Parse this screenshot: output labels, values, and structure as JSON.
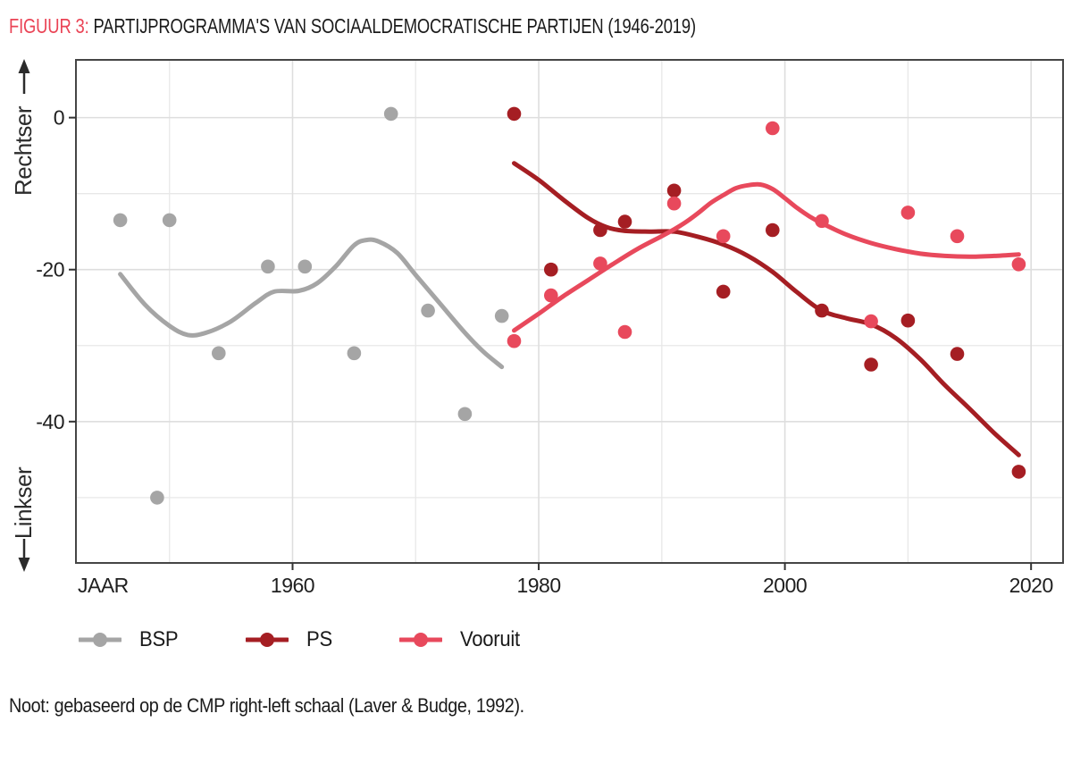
{
  "figure": {
    "label": "FIGUUR 3:",
    "title": "PARTIJPROGRAMMA'S VAN SOCIAALDEMOCRATISCHE PARTIJEN (1946-2019)",
    "note": "Noot: gebaseerd op de CMP right-left schaal (Laver & Budge, 1992)."
  },
  "colors": {
    "figure_label_red": "#ea4355",
    "bsp_gray": "#a5a5a5",
    "ps_dark_red": "#a51e23",
    "vooruit_pink": "#e8495c",
    "grid_major": "#dedede",
    "grid_minor": "#e8e8e8",
    "plot_border": "#454545",
    "axis_text": "#1f1f1f"
  },
  "chart_data": {
    "type": "scatter",
    "subtype": "scatter-with-loess-trend",
    "xlabel": "JAAR",
    "ylabel_top": "Rechtser",
    "ylabel_bottom": "Linkser",
    "xlim": [
      1942.4,
      2022.6
    ],
    "ylim": [
      -58.6,
      7.6
    ],
    "x_ticks": [
      1960,
      1980,
      2000,
      2020
    ],
    "y_ticks": [
      0,
      -20,
      -40
    ],
    "y_tick_labels": [
      "0",
      "-20",
      "-40"
    ],
    "grid_years_major": [
      1960,
      1980,
      2000,
      2020
    ],
    "grid_years_minor": [
      1950,
      1970,
      1990,
      2010
    ],
    "grid_values_major": [
      0,
      -20,
      -40
    ],
    "grid_values_minor": [
      -10,
      -30,
      -50
    ],
    "grid": true,
    "legend_position": "bottom",
    "series": [
      {
        "name": "BSP",
        "color": "#a5a5a5",
        "points": [
          [
            1946,
            -13.5
          ],
          [
            1949,
            -50
          ],
          [
            1950,
            -13.5
          ],
          [
            1954,
            -31
          ],
          [
            1958,
            -19.6
          ],
          [
            1961,
            -19.6
          ],
          [
            1965,
            -31
          ],
          [
            1968,
            0.5
          ],
          [
            1971,
            -25.4
          ],
          [
            1974,
            -39
          ],
          [
            1977,
            -26.1
          ]
        ],
        "trend": [
          [
            1946,
            -20.6
          ],
          [
            1948,
            -24.6
          ],
          [
            1950,
            -27.4
          ],
          [
            1951.5,
            -28.6
          ],
          [
            1953,
            -28.3
          ],
          [
            1955,
            -26.8
          ],
          [
            1957,
            -24.4
          ],
          [
            1958.5,
            -22.9
          ],
          [
            1960.5,
            -22.8
          ],
          [
            1962,
            -21.8
          ],
          [
            1963.5,
            -19.6
          ],
          [
            1965,
            -16.8
          ],
          [
            1966,
            -16.1
          ],
          [
            1967,
            -16.3
          ],
          [
            1968.5,
            -17.8
          ],
          [
            1970,
            -20.7
          ],
          [
            1972,
            -24.5
          ],
          [
            1974,
            -28.3
          ],
          [
            1975.5,
            -30.8
          ],
          [
            1977,
            -32.8
          ]
        ]
      },
      {
        "name": "PS",
        "color": "#a51e23",
        "points": [
          [
            1978,
            0.5
          ],
          [
            1981,
            -20
          ],
          [
            1985,
            -14.8
          ],
          [
            1987,
            -13.7
          ],
          [
            1991,
            -9.6
          ],
          [
            1995,
            -22.9
          ],
          [
            1999,
            -14.8
          ],
          [
            2003,
            -25.4
          ],
          [
            2007,
            -32.5
          ],
          [
            2010,
            -26.7
          ],
          [
            2014,
            -31.1
          ],
          [
            2019,
            -46.6
          ]
        ],
        "trend": [
          [
            1978,
            -6
          ],
          [
            1980,
            -8.2
          ],
          [
            1982,
            -10.8
          ],
          [
            1984,
            -13.2
          ],
          [
            1985.5,
            -14.4
          ],
          [
            1987,
            -14.9
          ],
          [
            1989,
            -15
          ],
          [
            1991,
            -15
          ],
          [
            1993,
            -15.7
          ],
          [
            1995,
            -16.7
          ],
          [
            1997,
            -18.2
          ],
          [
            1999,
            -20.3
          ],
          [
            2001,
            -23
          ],
          [
            2003,
            -25.4
          ],
          [
            2005,
            -26.4
          ],
          [
            2007,
            -27.2
          ],
          [
            2009,
            -29
          ],
          [
            2011,
            -31.8
          ],
          [
            2013,
            -35.2
          ],
          [
            2015,
            -38.3
          ],
          [
            2017,
            -41.5
          ],
          [
            2019,
            -44.4
          ]
        ]
      },
      {
        "name": "Vooruit",
        "color": "#e8495c",
        "points": [
          [
            1978,
            -29.4
          ],
          [
            1981,
            -23.4
          ],
          [
            1985,
            -19.2
          ],
          [
            1987,
            -28.2
          ],
          [
            1991,
            -11.3
          ],
          [
            1995,
            -15.6
          ],
          [
            1999,
            -1.4
          ],
          [
            2003,
            -13.6
          ],
          [
            2007,
            -26.8
          ],
          [
            2010,
            -12.5
          ],
          [
            2014,
            -15.6
          ],
          [
            2019,
            -19.3
          ]
        ],
        "trend": [
          [
            1978,
            -28
          ],
          [
            1980,
            -25.8
          ],
          [
            1982,
            -23.5
          ],
          [
            1984,
            -21.4
          ],
          [
            1986,
            -19.3
          ],
          [
            1988,
            -17.3
          ],
          [
            1990,
            -15.6
          ],
          [
            1991,
            -14.7
          ],
          [
            1992,
            -13.7
          ],
          [
            1993,
            -12.5
          ],
          [
            1994,
            -11.2
          ],
          [
            1995,
            -10.2
          ],
          [
            1996,
            -9.3
          ],
          [
            1997,
            -8.9
          ],
          [
            1998,
            -8.8
          ],
          [
            1999,
            -9.4
          ],
          [
            2000,
            -10.6
          ],
          [
            2001,
            -11.9
          ],
          [
            2002,
            -13
          ],
          [
            2003,
            -13.9
          ],
          [
            2005,
            -15.4
          ],
          [
            2007,
            -16.5
          ],
          [
            2009,
            -17.3
          ],
          [
            2011,
            -17.9
          ],
          [
            2013,
            -18.2
          ],
          [
            2015,
            -18.3
          ],
          [
            2017,
            -18.2
          ],
          [
            2019,
            -18
          ]
        ]
      }
    ]
  }
}
